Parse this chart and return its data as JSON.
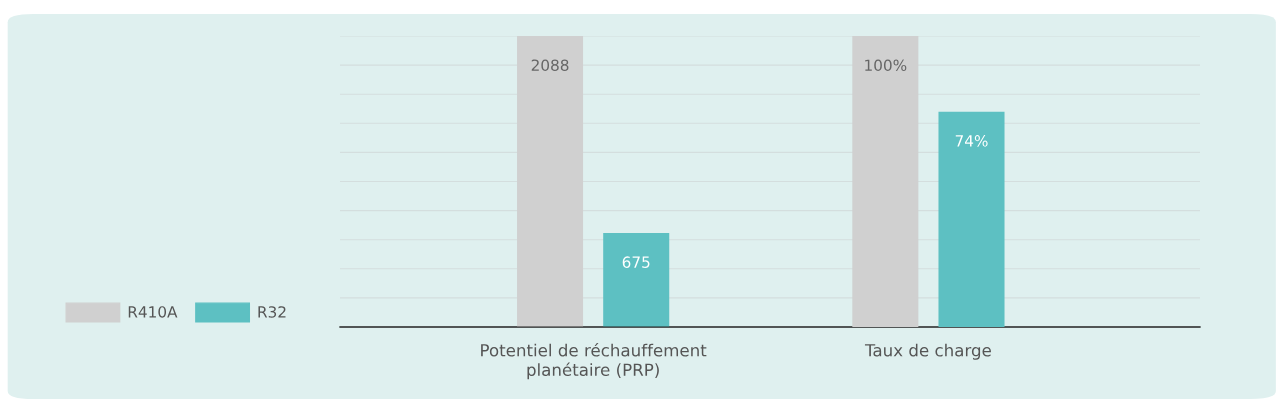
{
  "chart_data": {
    "type": "bar",
    "categories": [
      "Potentiel de réchauffement planétaire (PRP)",
      "Taux de charge"
    ],
    "series": [
      {
        "name": "R410A",
        "color": "#d0d0d0",
        "values": [
          2088,
          null
        ],
        "value_labels": [
          "2088",
          null
        ]
      },
      {
        "name": "R32",
        "color": "#5dc0c2",
        "values": [
          675,
          null
        ],
        "value_labels": [
          "675",
          null
        ]
      },
      {
        "color": "#d0d0d0",
        "axis": "y2",
        "values": [
          null,
          100
        ],
        "value_labels": [
          null,
          "100%"
        ]
      },
      {
        "color": "#5dc0c2",
        "axis": "y2",
        "values": [
          null,
          74
        ],
        "value_labels": [
          null,
          "74%"
        ]
      }
    ],
    "ylim": [
      0,
      2088
    ],
    "y2lim": [
      0,
      100
    ],
    "tick_labels": "x",
    "grid": "y",
    "legend": "left"
  }
}
